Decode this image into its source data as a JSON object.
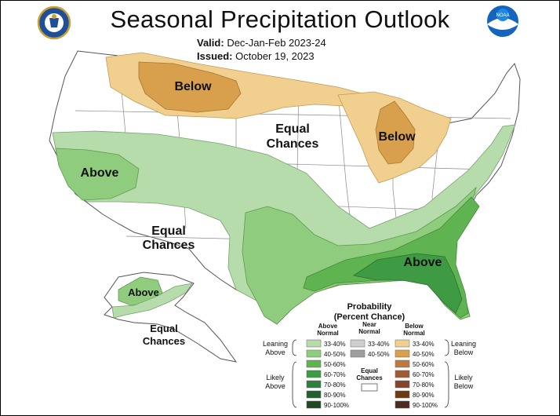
{
  "header": {
    "title": "Seasonal Precipitation Outlook",
    "valid_label": "Valid:",
    "valid_value": "Dec-Jan-Feb 2023-24",
    "issued_label": "Issued:",
    "issued_value": "October 19, 2023"
  },
  "logos": {
    "left": "commerce-seal-icon",
    "right": "noaa-logo-icon",
    "right_text": "NOAA"
  },
  "map_labels": {
    "north_below": "Below",
    "great_lakes_below": "Below",
    "central_equal_line1": "Equal",
    "central_equal_line2": "Chances",
    "west_above": "Above",
    "southwest_equal_line1": "Equal",
    "southwest_equal_line2": "Chances",
    "southeast_above": "Above",
    "alaska_above": "Above",
    "alaska_equal_line1": "Equal",
    "alaska_equal_line2": "Chances"
  },
  "legend": {
    "title_line1": "Probability",
    "title_line2": "(Percent Chance)",
    "above_header_line1": "Above",
    "above_header_line2": "Normal",
    "near_header_line1": "Near",
    "near_header_line2": "Normal",
    "below_header_line1": "Below",
    "below_header_line2": "Normal",
    "leaning_above_line1": "Leaning",
    "leaning_above_line2": "Above",
    "likely_above_line1": "Likely",
    "likely_above_line2": "Above",
    "leaning_below_line1": "Leaning",
    "leaning_below_line2": "Below",
    "likely_below_line1": "Likely",
    "likely_below_line2": "Below",
    "equal_label_line1": "Equal",
    "equal_label_line2": "Chances",
    "above": [
      {
        "label": "33-40%",
        "color": "#b5dcaa"
      },
      {
        "label": "40-50%",
        "color": "#8fcc7e"
      },
      {
        "label": "50-60%",
        "color": "#5fb451"
      },
      {
        "label": "60-70%",
        "color": "#3f9a44"
      },
      {
        "label": "70-80%",
        "color": "#2e7f3e"
      },
      {
        "label": "80-90%",
        "color": "#245f30"
      },
      {
        "label": "90-100%",
        "color": "#1f4a1f"
      }
    ],
    "near": [
      {
        "label": "33-40%",
        "color": "#cfcfcf"
      },
      {
        "label": "40-50%",
        "color": "#9e9e9e"
      }
    ],
    "below": [
      {
        "label": "33-40%",
        "color": "#f1cf8f"
      },
      {
        "label": "40-50%",
        "color": "#d8a04c"
      },
      {
        "label": "50-60%",
        "color": "#bb7a3e"
      },
      {
        "label": "60-70%",
        "color": "#9e5b35"
      },
      {
        "label": "70-80%",
        "color": "#83452b"
      },
      {
        "label": "80-90%",
        "color": "#6b3a12"
      },
      {
        "label": "90-100%",
        "color": "#4e2a1f"
      }
    ]
  }
}
